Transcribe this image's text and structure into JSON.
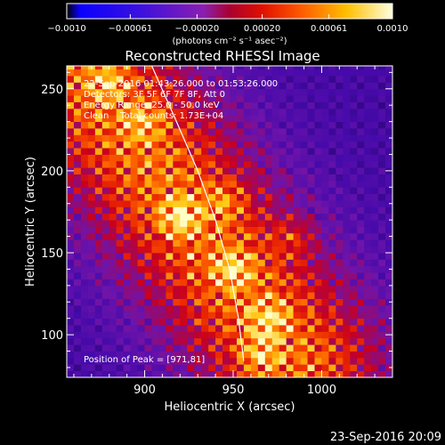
{
  "chart_data": {
    "type": "heatmap",
    "title": "Reconstructed RHESSI Image",
    "xlabel": "Heliocentric X (arcsec)",
    "ylabel": "Heliocentric Y (arcsec)",
    "xlim": [
      856,
      1040
    ],
    "ylim": [
      74,
      264
    ],
    "x_ticks": [
      900,
      950,
      1000
    ],
    "y_ticks": [
      100,
      150,
      200,
      250
    ],
    "colorbar": {
      "range": [
        -0.001,
        0.001
      ],
      "ticks": [
        -0.001,
        -0.00061,
        -0.0002,
        0.0002,
        0.00061,
        0.001
      ],
      "tick_labels": [
        "−0.0010",
        "−0.00061",
        "−0.00020",
        "0.00020",
        "0.00061",
        "0.0010"
      ],
      "label": "(photons cm⁻² s⁻¹ asec⁻²)"
    },
    "annotations": [
      "22-Sep-2016 01:43:26.000 to 01:53:26.000",
      "Detectors: 3F 5F 6F 7F 8F, Att 0",
      "Energy Range: 25.0 - 50.0 keV",
      "Clean    Total counts: 1.73E+04"
    ],
    "peak_label": "Position of Peak = [971,81]",
    "peak": [
      971,
      81
    ],
    "sources": [
      {
        "x": 920,
        "y": 172,
        "intensity": 1.0
      },
      {
        "x": 945,
        "y": 182,
        "intensity": 0.6
      },
      {
        "x": 950,
        "y": 140,
        "intensity": 0.85
      },
      {
        "x": 970,
        "y": 110,
        "intensity": 0.9
      },
      {
        "x": 985,
        "y": 160,
        "intensity": 0.55
      },
      {
        "x": 900,
        "y": 230,
        "intensity": 0.7
      },
      {
        "x": 880,
        "y": 255,
        "intensity": 0.65
      },
      {
        "x": 965,
        "y": 88,
        "intensity": 0.8
      }
    ],
    "limb_arc": [
      [
        904,
        264
      ],
      [
        918,
        230
      ],
      [
        930,
        200
      ],
      [
        940,
        170
      ],
      [
        948,
        140
      ],
      [
        953,
        110
      ],
      [
        956,
        84
      ]
    ],
    "footer": "23-Sep-2016 20:09"
  }
}
